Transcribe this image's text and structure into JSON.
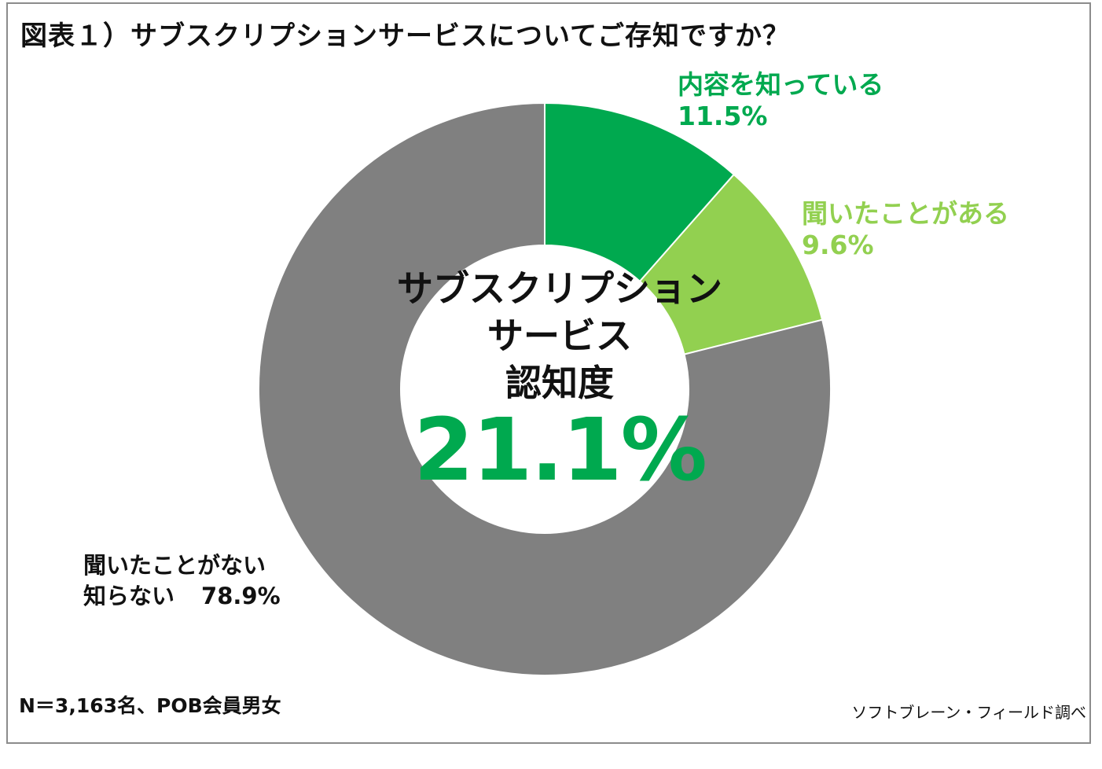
{
  "title": "図表１）サブスクリプションサービスについてご存知ですか？",
  "chart_data": {
    "type": "donut",
    "series": [
      {
        "name": "内容を知っている",
        "value": 11.5,
        "display": "11.5%",
        "color": "#00a94f"
      },
      {
        "name": "聞いたことがある",
        "value": 9.6,
        "display": "9.6%",
        "color": "#92d050"
      },
      {
        "name": "聞いたことがない知らない",
        "display_lines": [
          "聞いたことがない",
          "知らない"
        ],
        "value": 78.9,
        "display": "78.9%",
        "color": "#808080"
      }
    ],
    "center": {
      "lines": [
        "サブスクリプション",
        "サービス",
        "認知度"
      ],
      "value": "21.1%",
      "value_color": "#00a94f"
    }
  },
  "footnote": "N＝3,163名、POB会員男女",
  "source": "ソフトブレーン・フィールド調べ"
}
